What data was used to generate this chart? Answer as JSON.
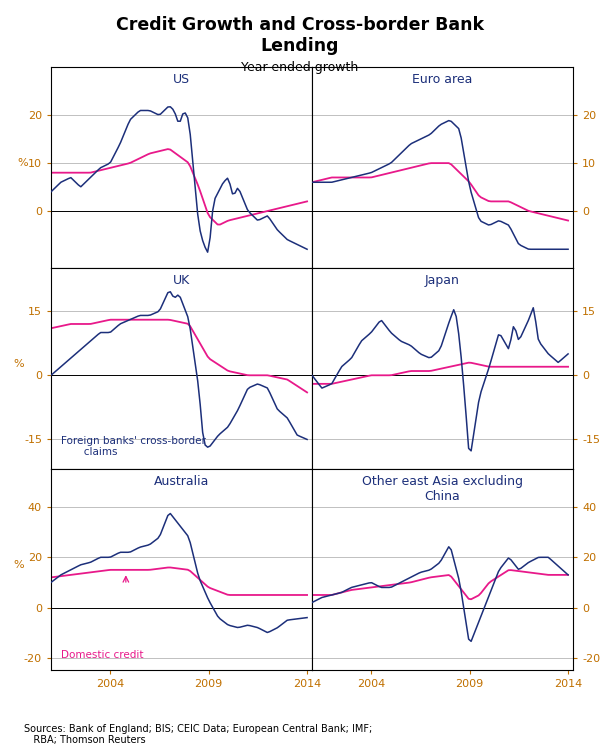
{
  "title": "Credit Growth and Cross-border Bank\nLending",
  "subtitle": "Year-ended growth",
  "source": "Sources: Bank of England; BIS; CEIC Data; European Central Bank; IMF;\n   RBA; Thomson Reuters",
  "panels": [
    {
      "title": "US",
      "ylim": [
        -12,
        30
      ],
      "yticks": [
        0,
        10,
        20
      ],
      "row": 0,
      "col": 0
    },
    {
      "title": "Euro area",
      "ylim": [
        -12,
        30
      ],
      "yticks": [
        0,
        10,
        20
      ],
      "row": 0,
      "col": 1
    },
    {
      "title": "UK",
      "ylim": [
        -22,
        25
      ],
      "yticks": [
        -15,
        0,
        15
      ],
      "row": 1,
      "col": 0
    },
    {
      "title": "Japan",
      "ylim": [
        -22,
        25
      ],
      "yticks": [
        -15,
        0,
        15
      ],
      "row": 1,
      "col": 1
    },
    {
      "title": "Australia",
      "ylim": [
        -25,
        55
      ],
      "yticks": [
        -20,
        0,
        20,
        40
      ],
      "row": 2,
      "col": 0
    },
    {
      "title": "Other east Asia excluding\nChina",
      "ylim": [
        -25,
        55
      ],
      "yticks": [
        -20,
        0,
        20,
        40
      ],
      "row": 2,
      "col": 1
    }
  ],
  "colors": {
    "foreign_banks": "#1c2f7a",
    "domestic_credit": "#e8198a",
    "grid": "#c0c0c0",
    "tick_label": "#c07000",
    "panel_title": "#1c2f7a",
    "label_foreign": "#1c2f7a",
    "label_domestic": "#e8198a"
  },
  "t_start": 2001.0,
  "t_end": 2014.0,
  "n_points": 104,
  "xticks": [
    2004,
    2009,
    2014
  ],
  "xlim": [
    2001.0,
    2014.25
  ]
}
